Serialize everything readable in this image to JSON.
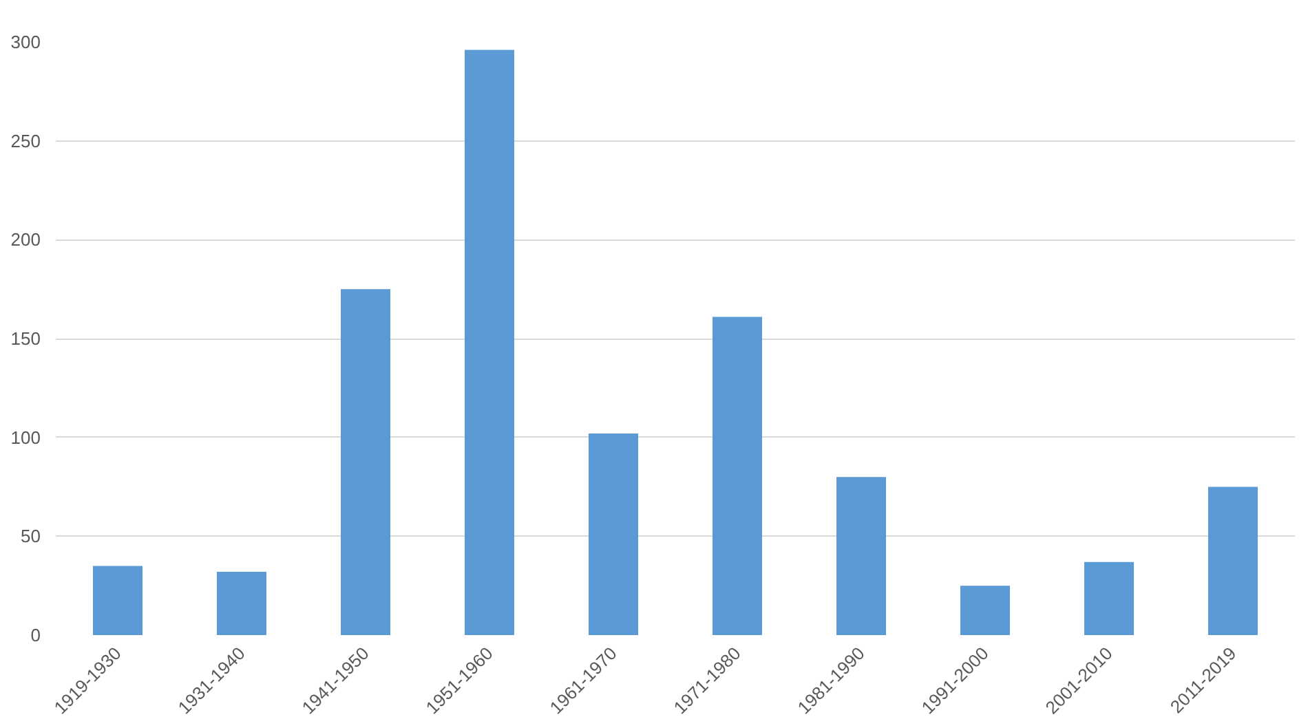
{
  "chart_data": {
    "type": "bar",
    "categories": [
      "1919-1930",
      "1931-1940",
      "1941-1950",
      "1951-1960",
      "1961-1970",
      "1971-1980",
      "1981-1990",
      "1991-2000",
      "2001-2010",
      "2011-2019"
    ],
    "values": [
      35,
      32,
      175,
      296,
      102,
      161,
      80,
      25,
      37,
      75
    ],
    "color": "#5b9bd5",
    "ylim": [
      0,
      300
    ],
    "yticks": [
      0,
      50,
      100,
      150,
      200,
      250,
      300
    ],
    "grid": "y"
  }
}
